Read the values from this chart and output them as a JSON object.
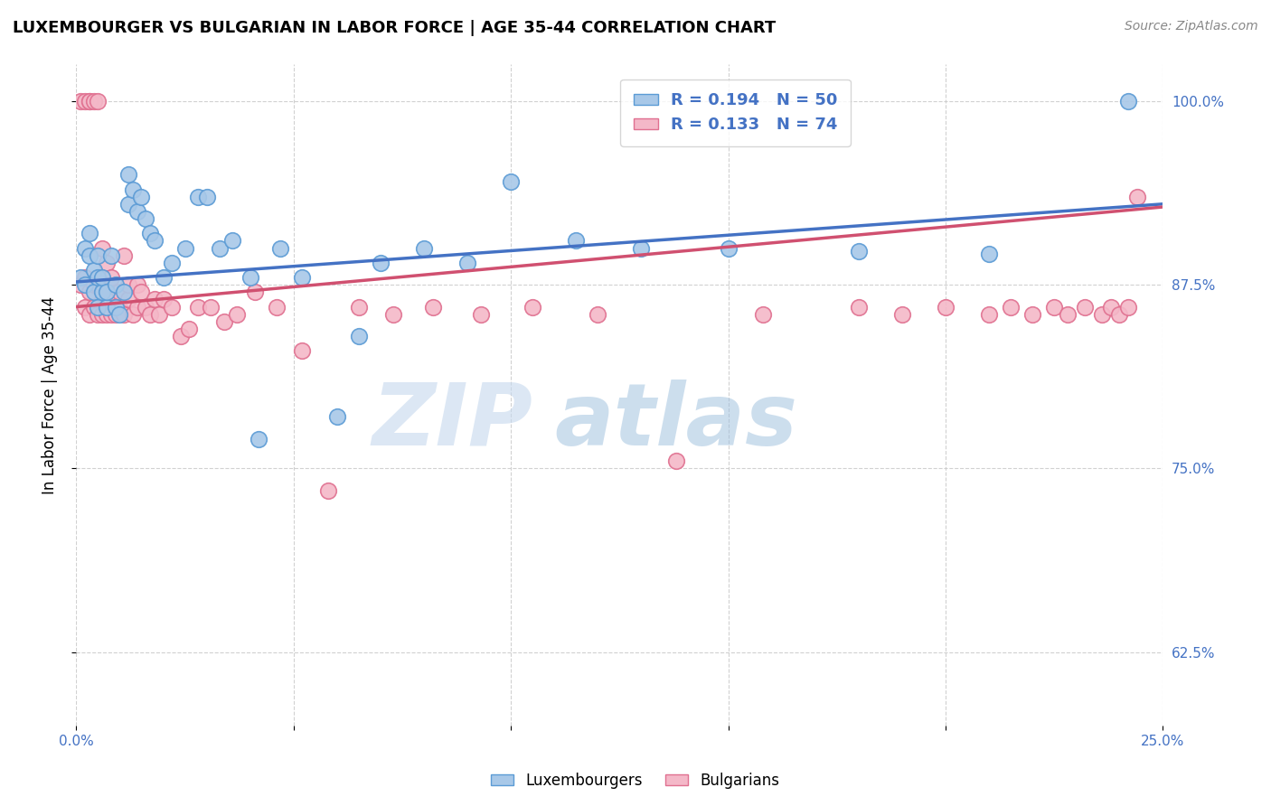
{
  "title": "LUXEMBOURGER VS BULGARIAN IN LABOR FORCE | AGE 35-44 CORRELATION CHART",
  "source": "Source: ZipAtlas.com",
  "ylabel": "In Labor Force | Age 35-44",
  "xlim": [
    0.0,
    0.25
  ],
  "ylim": [
    0.575,
    1.025
  ],
  "xticks": [
    0.0,
    0.05,
    0.1,
    0.15,
    0.2,
    0.25
  ],
  "xticklabels": [
    "0.0%",
    "",
    "",
    "",
    "",
    "25.0%"
  ],
  "ytick_positions": [
    0.625,
    0.75,
    0.875,
    1.0
  ],
  "yticklabels": [
    "62.5%",
    "75.0%",
    "87.5%",
    "100.0%"
  ],
  "lux_color": "#a8c8e8",
  "lux_edge_color": "#5b9bd5",
  "bul_color": "#f4b8c8",
  "bul_edge_color": "#e07090",
  "trend_lux_color": "#4472c4",
  "trend_bul_color": "#d05070",
  "lux_R": 0.194,
  "lux_N": 50,
  "bul_R": 0.133,
  "bul_N": 74,
  "watermark_zip": "ZIP",
  "watermark_atlas": "atlas",
  "footer_lux": "Luxembourgers",
  "footer_bul": "Bulgarians",
  "lux_scatter_x": [
    0.001,
    0.002,
    0.002,
    0.003,
    0.003,
    0.004,
    0.004,
    0.005,
    0.005,
    0.005,
    0.006,
    0.006,
    0.007,
    0.007,
    0.008,
    0.009,
    0.009,
    0.01,
    0.011,
    0.012,
    0.012,
    0.013,
    0.014,
    0.015,
    0.016,
    0.017,
    0.018,
    0.02,
    0.022,
    0.025,
    0.028,
    0.03,
    0.033,
    0.036,
    0.04,
    0.042,
    0.047,
    0.052,
    0.06,
    0.065,
    0.07,
    0.08,
    0.09,
    0.1,
    0.115,
    0.13,
    0.15,
    0.18,
    0.21,
    0.242
  ],
  "lux_scatter_y": [
    0.88,
    0.9,
    0.875,
    0.895,
    0.91,
    0.885,
    0.87,
    0.88,
    0.895,
    0.86,
    0.87,
    0.88,
    0.86,
    0.87,
    0.895,
    0.86,
    0.875,
    0.855,
    0.87,
    0.93,
    0.95,
    0.94,
    0.925,
    0.935,
    0.92,
    0.91,
    0.905,
    0.88,
    0.89,
    0.9,
    0.935,
    0.935,
    0.9,
    0.905,
    0.88,
    0.77,
    0.9,
    0.88,
    0.785,
    0.84,
    0.89,
    0.9,
    0.89,
    0.945,
    0.905,
    0.9,
    0.9,
    0.898,
    0.896,
    1.0
  ],
  "bul_scatter_x": [
    0.001,
    0.001,
    0.002,
    0.002,
    0.002,
    0.003,
    0.003,
    0.003,
    0.003,
    0.004,
    0.004,
    0.004,
    0.005,
    0.005,
    0.005,
    0.006,
    0.006,
    0.006,
    0.007,
    0.007,
    0.007,
    0.008,
    0.008,
    0.008,
    0.009,
    0.009,
    0.01,
    0.01,
    0.011,
    0.011,
    0.012,
    0.012,
    0.013,
    0.014,
    0.014,
    0.015,
    0.016,
    0.017,
    0.018,
    0.019,
    0.02,
    0.022,
    0.024,
    0.026,
    0.028,
    0.031,
    0.034,
    0.037,
    0.041,
    0.046,
    0.052,
    0.058,
    0.065,
    0.073,
    0.082,
    0.093,
    0.105,
    0.12,
    0.138,
    0.158,
    0.18,
    0.19,
    0.2,
    0.21,
    0.215,
    0.22,
    0.225,
    0.228,
    0.232,
    0.236,
    0.238,
    0.24,
    0.242,
    0.244
  ],
  "bul_scatter_y": [
    1.0,
    0.875,
    1.0,
    0.88,
    0.86,
    1.0,
    1.0,
    0.87,
    0.855,
    1.0,
    0.875,
    0.86,
    1.0,
    0.875,
    0.855,
    0.87,
    0.855,
    0.9,
    0.89,
    0.875,
    0.855,
    0.87,
    0.855,
    0.88,
    0.86,
    0.855,
    0.86,
    0.87,
    0.855,
    0.895,
    0.865,
    0.875,
    0.855,
    0.875,
    0.86,
    0.87,
    0.86,
    0.855,
    0.865,
    0.855,
    0.865,
    0.86,
    0.84,
    0.845,
    0.86,
    0.86,
    0.85,
    0.855,
    0.87,
    0.86,
    0.83,
    0.735,
    0.86,
    0.855,
    0.86,
    0.855,
    0.86,
    0.855,
    0.755,
    0.855,
    0.86,
    0.855,
    0.86,
    0.855,
    0.86,
    0.855,
    0.86,
    0.855,
    0.86,
    0.855,
    0.86,
    0.855,
    0.86,
    0.935
  ],
  "trend_lux_x0": 0.0,
  "trend_lux_y0": 0.877,
  "trend_lux_x1": 0.25,
  "trend_lux_y1": 0.93,
  "trend_bul_x0": 0.0,
  "trend_bul_y0": 0.86,
  "trend_bul_x1": 0.25,
  "trend_bul_y1": 0.928
}
